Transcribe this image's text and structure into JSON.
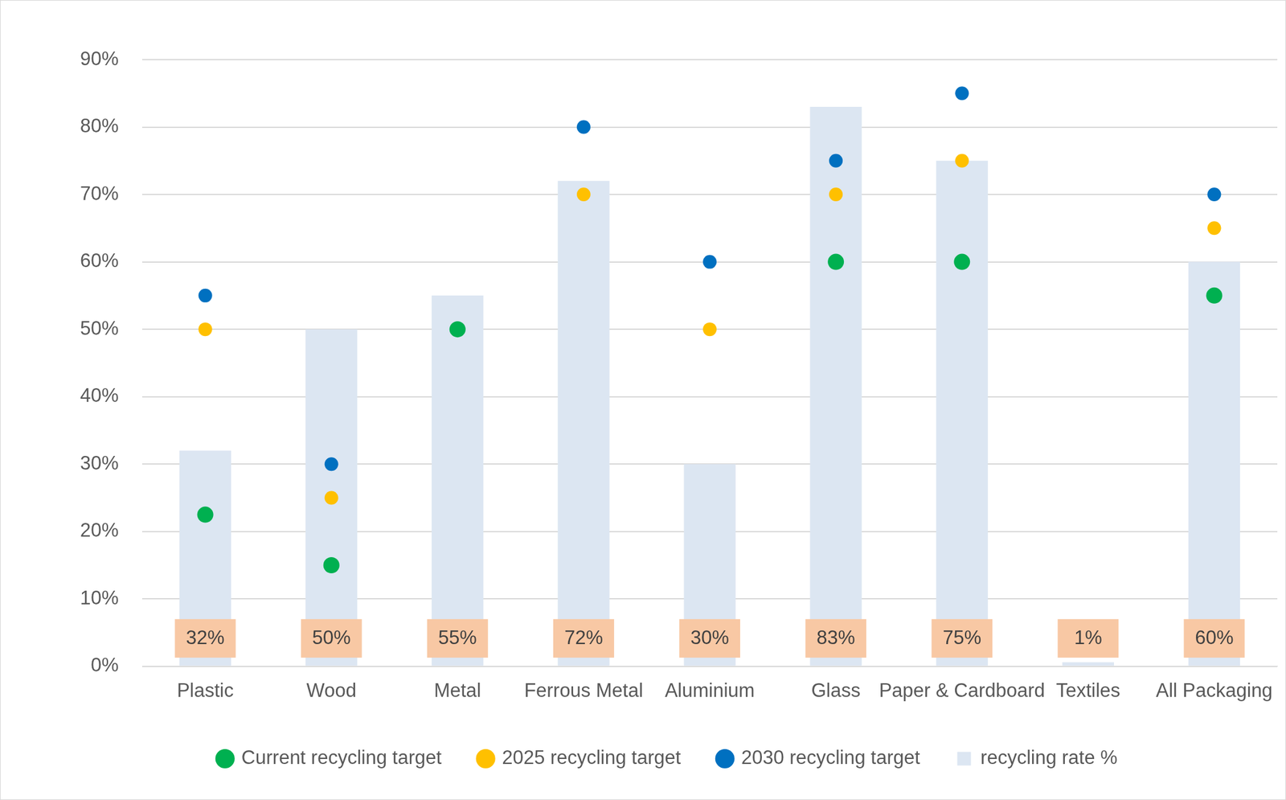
{
  "chart_data": {
    "type": "bar",
    "categories": [
      "Plastic",
      "Wood",
      "Metal",
      "Ferrous Metal",
      "Aluminium",
      "Glass",
      "Paper & Cardboard",
      "Textiles",
      "All Packaging"
    ],
    "series": [
      {
        "name": "recycling rate %",
        "type": "bar",
        "color": "#dce6f2",
        "values": [
          32,
          50,
          55,
          72,
          30,
          83,
          75,
          0.6,
          60
        ],
        "value_labels": [
          "32%",
          "50%",
          "55%",
          "72%",
          "30%",
          "83%",
          "75%",
          "1%",
          "60%"
        ],
        "data_labels": true
      },
      {
        "name": "Current recycling target",
        "type": "scatter",
        "marker": "circle",
        "color": "#00b050",
        "values": [
          22.5,
          15,
          50,
          null,
          null,
          60,
          60,
          null,
          55
        ]
      },
      {
        "name": "2025 recycling target",
        "type": "scatter",
        "marker": "circle",
        "color": "#ffc000",
        "values": [
          50,
          25,
          null,
          70,
          50,
          70,
          75,
          null,
          65
        ]
      },
      {
        "name": "2030 recycling target",
        "type": "scatter",
        "marker": "circle",
        "color": "#0070c0",
        "values": [
          55,
          30,
          null,
          80,
          60,
          75,
          85,
          null,
          70
        ]
      }
    ],
    "ylim": [
      0,
      90
    ],
    "yticks": [
      {
        "value": 0,
        "label": "0%"
      },
      {
        "value": 10,
        "label": "10%"
      },
      {
        "value": 20,
        "label": "20%"
      },
      {
        "value": 30,
        "label": "30%"
      },
      {
        "value": 40,
        "label": "40%"
      },
      {
        "value": 50,
        "label": "50%"
      },
      {
        "value": 60,
        "label": "60%"
      },
      {
        "value": 70,
        "label": "70%"
      },
      {
        "value": 80,
        "label": "80%"
      },
      {
        "value": 90,
        "label": "90%"
      }
    ],
    "grid": true,
    "legend": "bottom"
  }
}
